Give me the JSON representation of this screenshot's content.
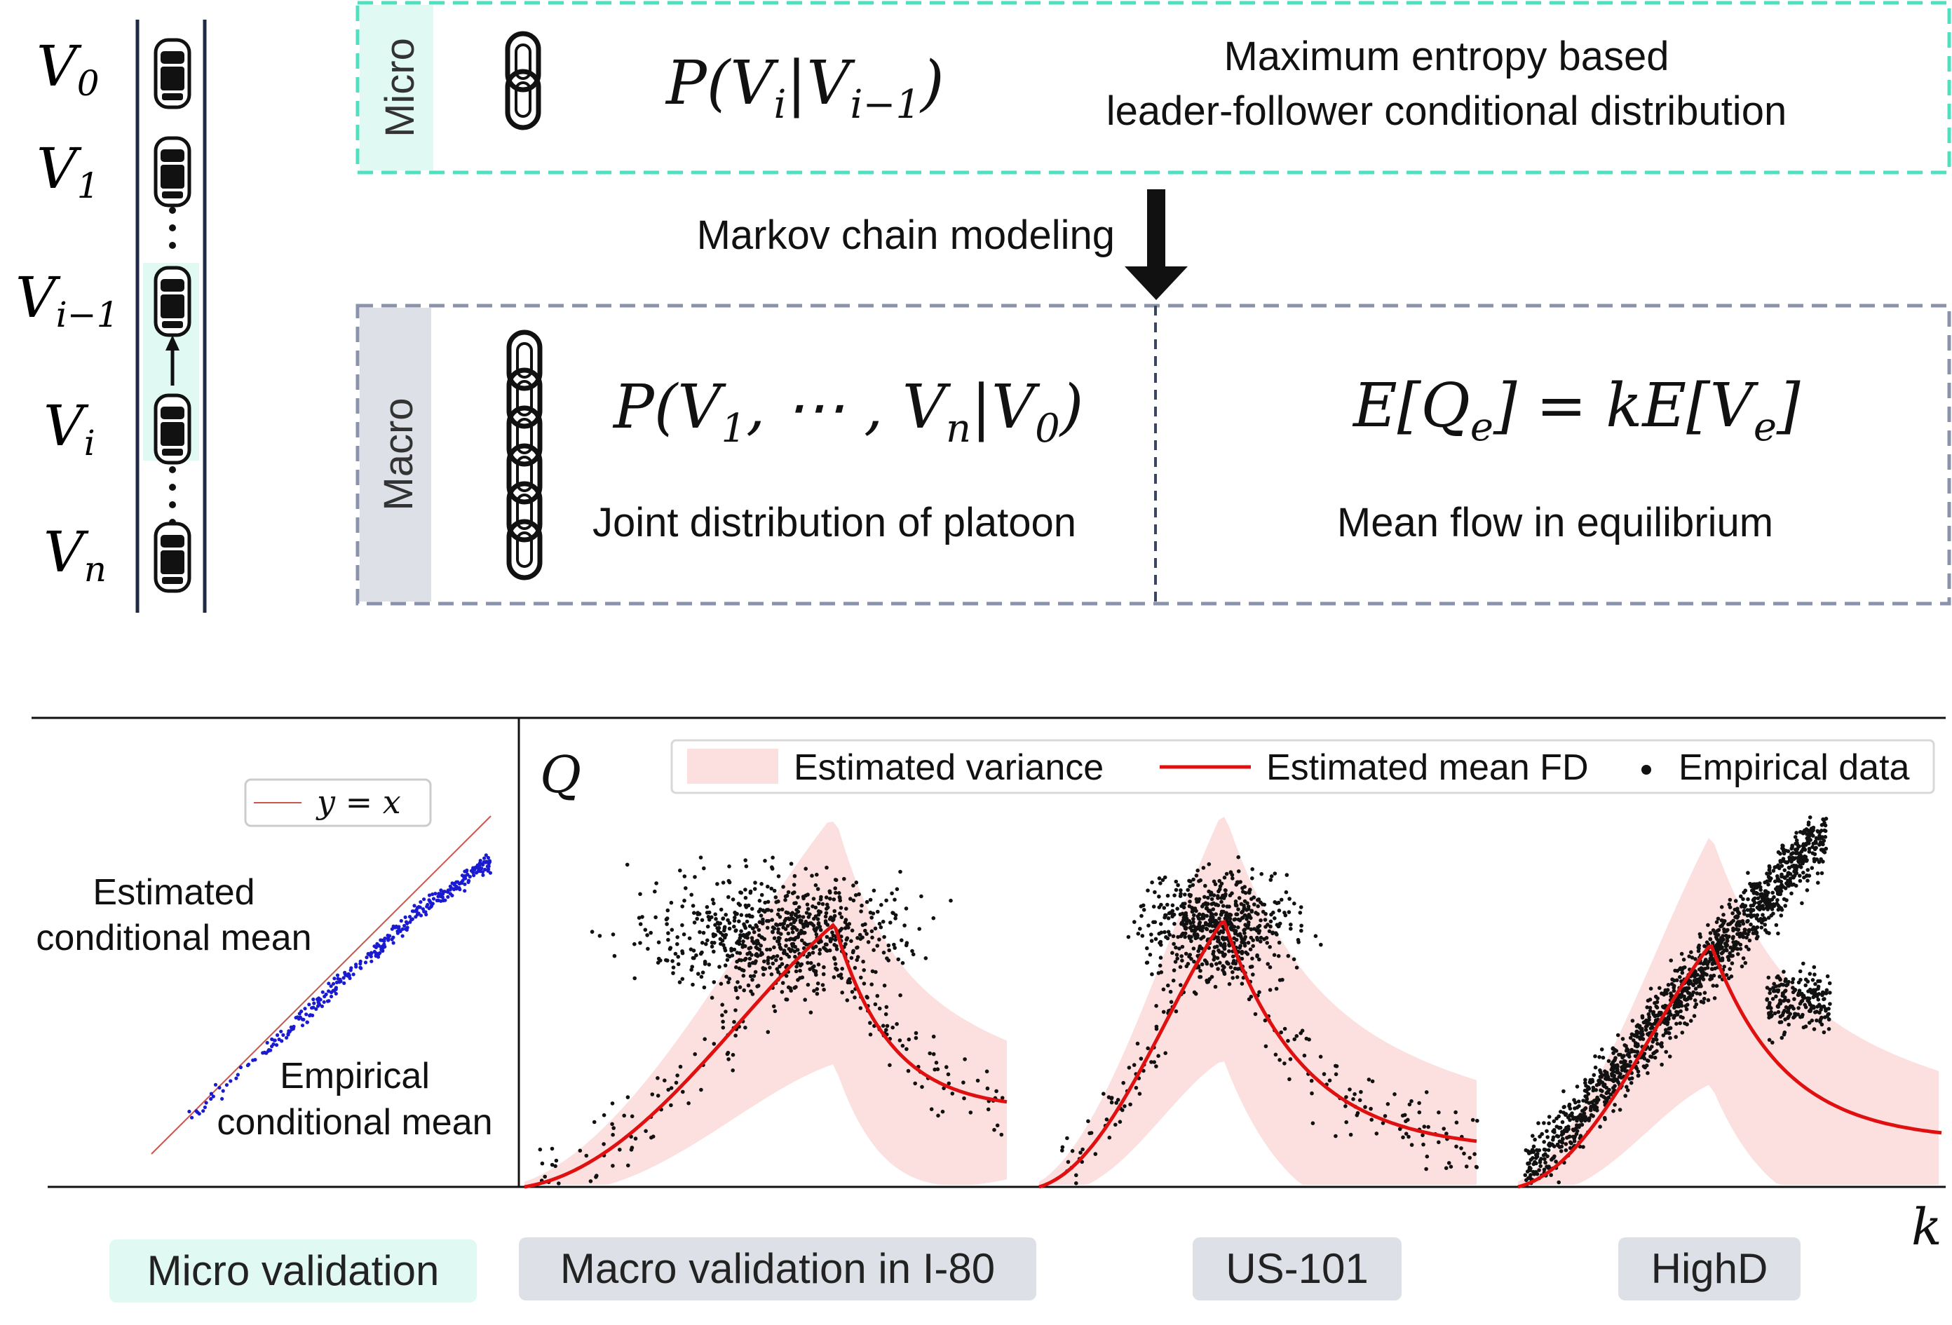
{
  "vehicles": [
    {
      "var": "V",
      "sub": "0"
    },
    {
      "var": "V",
      "sub": "1"
    },
    {
      "var": "V",
      "sub": "i−1"
    },
    {
      "var": "V",
      "sub": "i"
    },
    {
      "var": "V",
      "sub": "n"
    }
  ],
  "micro_box": {
    "tag": "Micro",
    "formula_var": "P(V",
    "formula_sub1": "i",
    "formula_mid": "|V",
    "formula_sub2": "i−1",
    "formula_end": ")",
    "desc_line1": "Maximum entropy based",
    "desc_line2": "leader-follower conditional distribution"
  },
  "arrow_label": "Markov chain modeling",
  "macro_box": {
    "tag": "Macro",
    "formula_parts": [
      "P(V",
      "1",
      ", ⋯ , V",
      "n",
      "|V",
      "0",
      ")"
    ],
    "left_desc": "Joint distribution of platoon",
    "right_formula_parts": [
      "E[Q",
      "e",
      "] = kE[V",
      "e",
      "]"
    ],
    "right_desc": "Mean flow in equilibrium"
  },
  "micro_plot": {
    "legend": "y = x",
    "label_estimated_1": "Estimated",
    "label_estimated_2": "conditional mean",
    "label_empirical_1": "Empirical",
    "label_empirical_2": "conditional mean"
  },
  "macro_plot": {
    "y_label": "Q",
    "x_label": "k",
    "legend": {
      "variance": "Estimated variance",
      "mean": "Estimated mean FD",
      "empirical": "Empirical data"
    }
  },
  "captions": {
    "micro": "Micro validation",
    "i80": "Macro validation in I-80",
    "us101": "US-101",
    "highd": "HighD"
  },
  "colors": {
    "micro_accent": "#4fe0c0",
    "micro_tag_bg": "#e0faf3",
    "macro_border": "#8a93ab",
    "macro_tag_bg": "#dde0e7",
    "variance_fill": "#fce0e0",
    "mean_line": "#e01010",
    "scatter_blue": "#1a1ad0"
  }
}
